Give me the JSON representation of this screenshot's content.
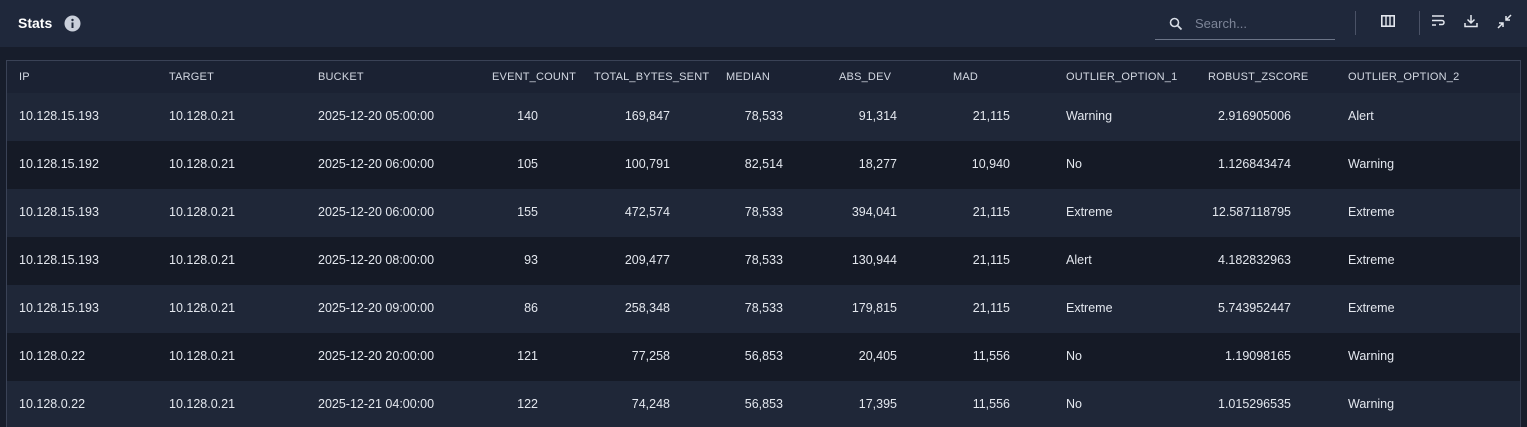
{
  "header": {
    "title": "Stats",
    "search_placeholder": "Search..."
  },
  "table": {
    "columns": [
      "IP",
      "TARGET",
      "BUCKET",
      "EVENT_COUNT",
      "TOTAL_BYTES_SENT",
      "MEDIAN",
      "ABS_DEV",
      "MAD",
      "OUTLIER_OPTION_1",
      "ROBUST_ZSCORE",
      "OUTLIER_OPTION_2"
    ],
    "rows": [
      [
        "10.128.15.193",
        "10.128.0.21",
        "2025-12-20 05:00:00",
        "140",
        "169,847",
        "78,533",
        "91,314",
        "21,115",
        "Warning",
        "2.916905006",
        "Alert"
      ],
      [
        "10.128.15.192",
        "10.128.0.21",
        "2025-12-20 06:00:00",
        "105",
        "100,791",
        "82,514",
        "18,277",
        "10,940",
        "No",
        "1.126843474",
        "Warning"
      ],
      [
        "10.128.15.193",
        "10.128.0.21",
        "2025-12-20 06:00:00",
        "155",
        "472,574",
        "78,533",
        "394,041",
        "21,115",
        "Extreme",
        "12.587118795",
        "Extreme"
      ],
      [
        "10.128.15.193",
        "10.128.0.21",
        "2025-12-20 08:00:00",
        "93",
        "209,477",
        "78,533",
        "130,944",
        "21,115",
        "Alert",
        "4.182832963",
        "Extreme"
      ],
      [
        "10.128.15.193",
        "10.128.0.21",
        "2025-12-20 09:00:00",
        "86",
        "258,348",
        "78,533",
        "179,815",
        "21,115",
        "Extreme",
        "5.743952447",
        "Extreme"
      ],
      [
        "10.128.0.22",
        "10.128.0.21",
        "2025-12-20 20:00:00",
        "121",
        "77,258",
        "56,853",
        "20,405",
        "11,556",
        "No",
        "1.19098165",
        "Warning"
      ],
      [
        "10.128.0.22",
        "10.128.0.21",
        "2025-12-21 04:00:00",
        "122",
        "74,248",
        "56,853",
        "17,395",
        "11,556",
        "No",
        "1.015296535",
        "Warning"
      ]
    ]
  }
}
